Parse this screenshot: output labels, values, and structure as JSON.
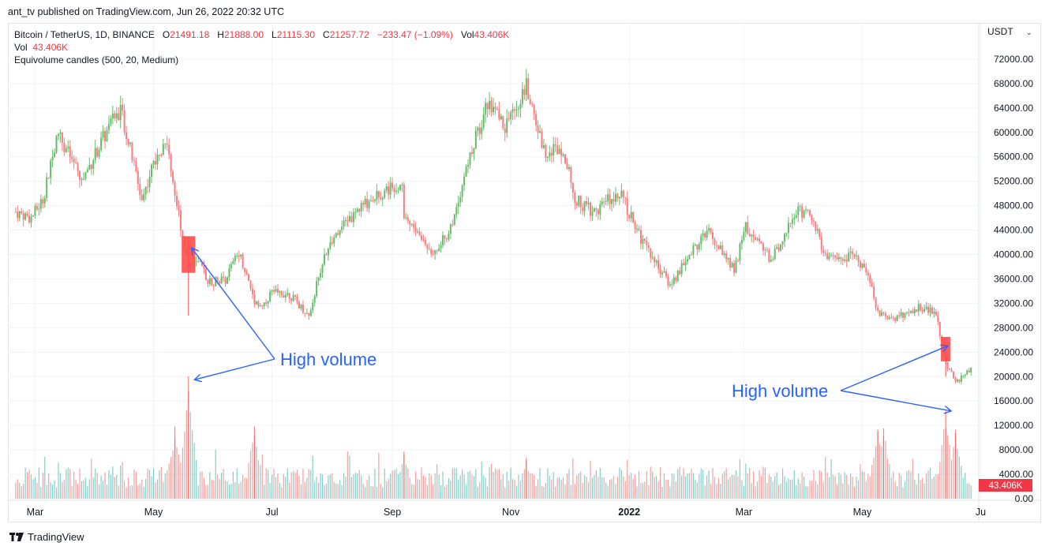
{
  "header": {
    "published": "ant_tv published on TradingView.com, Jun 26, 2022 20:32 UTC"
  },
  "legend": {
    "symbol": "Bitcoin / TetherUS, 1D, BINANCE",
    "o_label": "O",
    "o_value": "21491.18",
    "h_label": "H",
    "h_value": "21888.00",
    "l_label": "L",
    "l_value": "21115.30",
    "c_label": "C",
    "c_value": "21257.72",
    "change": "−233.47 (−1.09%)",
    "vol_label": "Vol",
    "vol_value": "43.406K",
    "vol_row_label": "Vol",
    "vol_row_value": "43.406K",
    "indicator": "Equivolume candles (500, 20, Medium)"
  },
  "footer": {
    "brand": "TradingView"
  },
  "colors": {
    "up": "#26a69a",
    "down": "#ef5350",
    "up_candle": "#66bb6a",
    "down_candle": "#f77c80",
    "annotation": "#2962ff",
    "badge": "#f23645"
  },
  "chart_data": {
    "type": "candlestick",
    "currency_label": "USDT",
    "x_range": [
      "2021-02-15",
      "2022-06-30"
    ],
    "ylim": [
      0,
      76000
    ],
    "price_ticks": [
      "72000.00",
      "68000.00",
      "64000.00",
      "60000.00",
      "56000.00",
      "52000.00",
      "48000.00",
      "44000.00",
      "40000.00",
      "36000.00",
      "32000.00",
      "28000.00",
      "24000.00",
      "20000.00",
      "16000.00",
      "12000.00",
      "8000.00",
      "4000.00",
      "0.00"
    ],
    "x_ticks": [
      {
        "date": "2021-03-01",
        "label": "Mar"
      },
      {
        "date": "2021-05-01",
        "label": "May"
      },
      {
        "date": "2021-07-01",
        "label": "Jul"
      },
      {
        "date": "2021-09-01",
        "label": "Sep"
      },
      {
        "date": "2021-11-01",
        "label": "Nov"
      },
      {
        "date": "2022-01-01",
        "label": "2022"
      },
      {
        "date": "2022-03-01",
        "label": "Mar"
      },
      {
        "date": "2022-05-01",
        "label": "May"
      },
      {
        "date": "2022-07-01",
        "label": "Ju"
      }
    ],
    "price_path": [
      [
        "2021-02-19",
        47000
      ],
      [
        "2021-02-27",
        46000
      ],
      [
        "2021-03-05",
        49000
      ],
      [
        "2021-03-13",
        60000
      ],
      [
        "2021-03-25",
        52000
      ],
      [
        "2021-04-05",
        59000
      ],
      [
        "2021-04-14",
        64000
      ],
      [
        "2021-04-25",
        49000
      ],
      [
        "2021-05-03",
        57000
      ],
      [
        "2021-05-08",
        58500
      ],
      [
        "2021-05-12",
        50000
      ],
      [
        "2021-05-19",
        38000
      ],
      [
        "2021-05-24",
        38500
      ],
      [
        "2021-05-30",
        35500
      ],
      [
        "2021-06-07",
        36000
      ],
      [
        "2021-06-14",
        40500
      ],
      [
        "2021-06-22",
        32500
      ],
      [
        "2021-06-26",
        31500
      ],
      [
        "2021-07-01",
        34000
      ],
      [
        "2021-07-10",
        33500
      ],
      [
        "2021-07-20",
        30000
      ],
      [
        "2021-07-28",
        40000
      ],
      [
        "2021-08-10",
        46000
      ],
      [
        "2021-08-22",
        49500
      ],
      [
        "2021-09-06",
        52000
      ],
      [
        "2021-09-07",
        46500
      ],
      [
        "2021-09-21",
        40500
      ],
      [
        "2021-09-30",
        43500
      ],
      [
        "2021-10-10",
        55000
      ],
      [
        "2021-10-20",
        65000
      ],
      [
        "2021-10-29",
        61000
      ],
      [
        "2021-11-09",
        67500
      ],
      [
        "2021-11-18",
        57000
      ],
      [
        "2021-11-28",
        57500
      ],
      [
        "2021-12-04",
        49000
      ],
      [
        "2021-12-14",
        47000
      ],
      [
        "2021-12-27",
        50500
      ],
      [
        "2022-01-06",
        43000
      ],
      [
        "2022-01-22",
        35000
      ],
      [
        "2022-02-10",
        44000
      ],
      [
        "2022-02-24",
        37500
      ],
      [
        "2022-03-02",
        44500
      ],
      [
        "2022-03-15",
        39000
      ],
      [
        "2022-03-29",
        47500
      ],
      [
        "2022-04-06",
        45500
      ],
      [
        "2022-04-12",
        39500
      ],
      [
        "2022-04-28",
        39700
      ],
      [
        "2022-05-05",
        36000
      ],
      [
        "2022-05-09",
        30500
      ],
      [
        "2022-05-18",
        29500
      ],
      [
        "2022-05-31",
        31500
      ],
      [
        "2022-06-08",
        30200
      ],
      [
        "2022-06-13",
        22500
      ],
      [
        "2022-06-18",
        19000
      ],
      [
        "2022-06-26",
        21258
      ]
    ],
    "volume_spikes": [
      {
        "date": "2021-05-19",
        "value": 19500
      },
      {
        "date": "2021-05-12",
        "value": 11500
      },
      {
        "date": "2021-06-22",
        "value": 11500
      },
      {
        "date": "2021-09-07",
        "value": 7500
      },
      {
        "date": "2021-11-09",
        "value": 6500
      },
      {
        "date": "2022-05-09",
        "value": 11000
      },
      {
        "date": "2022-05-12",
        "value": 11200
      },
      {
        "date": "2022-06-13",
        "value": 14000
      },
      {
        "date": "2022-06-18",
        "value": 11000
      }
    ],
    "highlight_candles": [
      {
        "date": "2021-05-19",
        "open": 43000,
        "close": 37000,
        "high": 43000,
        "low": 30000,
        "width_days": 7,
        "dir": "down"
      },
      {
        "date": "2022-06-13",
        "open": 26500,
        "close": 22500,
        "high": 26500,
        "low": 20000,
        "width_days": 5,
        "dir": "down"
      }
    ],
    "annotations": [
      {
        "text": "High volume",
        "arrows": [
          {
            "date": "2021-05-20",
            "price": 41000
          },
          {
            "date": "2021-05-20",
            "price": 19500
          }
        ]
      },
      {
        "text": "High volume",
        "arrows": [
          {
            "date": "2022-06-13",
            "price": 25000
          },
          {
            "date": "2022-06-13",
            "price": 14000
          }
        ]
      }
    ],
    "last_price_badge": "43.406K",
    "last_volume": 43406
  }
}
